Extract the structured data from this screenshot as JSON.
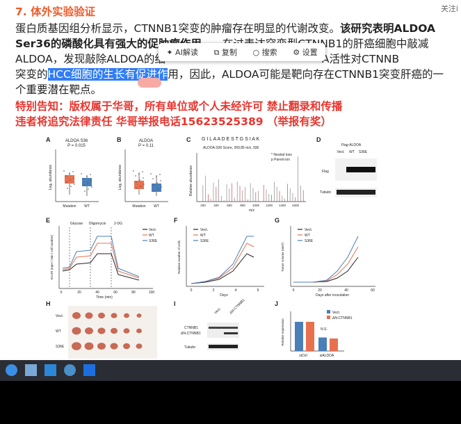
{
  "top_right": "关注i",
  "heading": "7. 体外实验验证",
  "lines": [
    [
      "蛋白质基因组分析显示，CTNNB1突变的肿瘤存在明显的代谢改变。",
      "该研究表明ALDOA"
    ],
    [
      "Ser36的磷酸化具有强大的促肿瘤作用",
      "在过表达突变型CTNNB1的肝癌细胞中敲减"
    ],
    [
      "ALDOA，发现敲除ALDOA的细",
      "A活性对CTNNB"
    ],
    [
      "突变的",
      "HCC细胞的生长有促进作",
      "用，因此，ALDOA可能是靶向存在CTNNB1突变肝癌的一"
    ],
    [
      "个重要潜在靶点。"
    ]
  ],
  "notice": [
    "特别告知：版权属于华哥，所有单位或个人未经许可 禁止翻录和传播",
    "违者将追究法律责任  华哥举报电话15623525389   （举报有奖）"
  ],
  "toolbar": [
    "AI解读",
    "复制",
    "搜索",
    "设置"
  ],
  "figure": {
    "letters": [
      "A",
      "B",
      "C",
      "D",
      "E",
      "F",
      "G",
      "H",
      "I",
      "J"
    ],
    "a": {
      "title": "ALDOA S36",
      "p": "P = 0.015",
      "y": "Log₂ abundance",
      "x": [
        "Mutation",
        "WT"
      ]
    },
    "b": {
      "title": "ALDOA",
      "p": "P = 0.11",
      "y": "Log₂ abundance",
      "x": [
        "Mutation",
        "WT"
      ]
    },
    "c": {
      "seq": "G I L A A D E S T G S I A K",
      "info": "ALDOA:S36   Score, 269.85   m/z, 936",
      "notes": [
        "* Neutral loss",
        "p Parent ion"
      ],
      "y": "Relative abundance",
      "x": "m/z",
      "xticks": [
        "200",
        "400",
        "600",
        "800",
        "1000",
        "1200",
        "1400",
        "1600"
      ]
    },
    "d": {
      "title": "Flag-ALDOA",
      "cols": [
        "Vect.",
        "WT",
        "S36E"
      ],
      "rows": [
        "Flag",
        "Tubulin"
      ]
    },
    "e": {
      "phases": [
        "Glucose",
        "Oligomycin",
        "2-DG"
      ],
      "legend": [
        "Vect.",
        "WT",
        "S36E"
      ],
      "x": "Time (min)",
      "y": "ECAR (mpH / min / cell number)",
      "xticks": [
        "0",
        "20",
        "40",
        "60",
        "80",
        "100"
      ]
    },
    "f": {
      "legend": [
        "Vect.",
        "WT",
        "S36E"
      ],
      "x": "Days",
      "y": "Relative number of cells",
      "xticks": [
        "0",
        "2",
        "4",
        "6"
      ]
    },
    "g": {
      "legend": [
        "Vect.",
        "WT",
        "S36E"
      ],
      "x": "Days after inoculation",
      "y": "Tumor volume (mm³)",
      "xticks": [
        "0",
        "20",
        "40",
        "60"
      ]
    },
    "h": {
      "rows": [
        "Vect.",
        "WT",
        "S36E"
      ]
    },
    "i": {
      "cols": [
        "Vect.",
        "ΔN-CTNNB1"
      ],
      "rows": [
        "CTNNB1",
        "ΔN-CTNNB1",
        "Tubulin"
      ]
    },
    "j": {
      "legend": [
        "Vect.",
        "ΔN-CTNNB1"
      ],
      "y": "Relative expression",
      "x": [
        "siCtrl",
        "siALDOA"
      ],
      "ns": "N.S."
    }
  }
}
